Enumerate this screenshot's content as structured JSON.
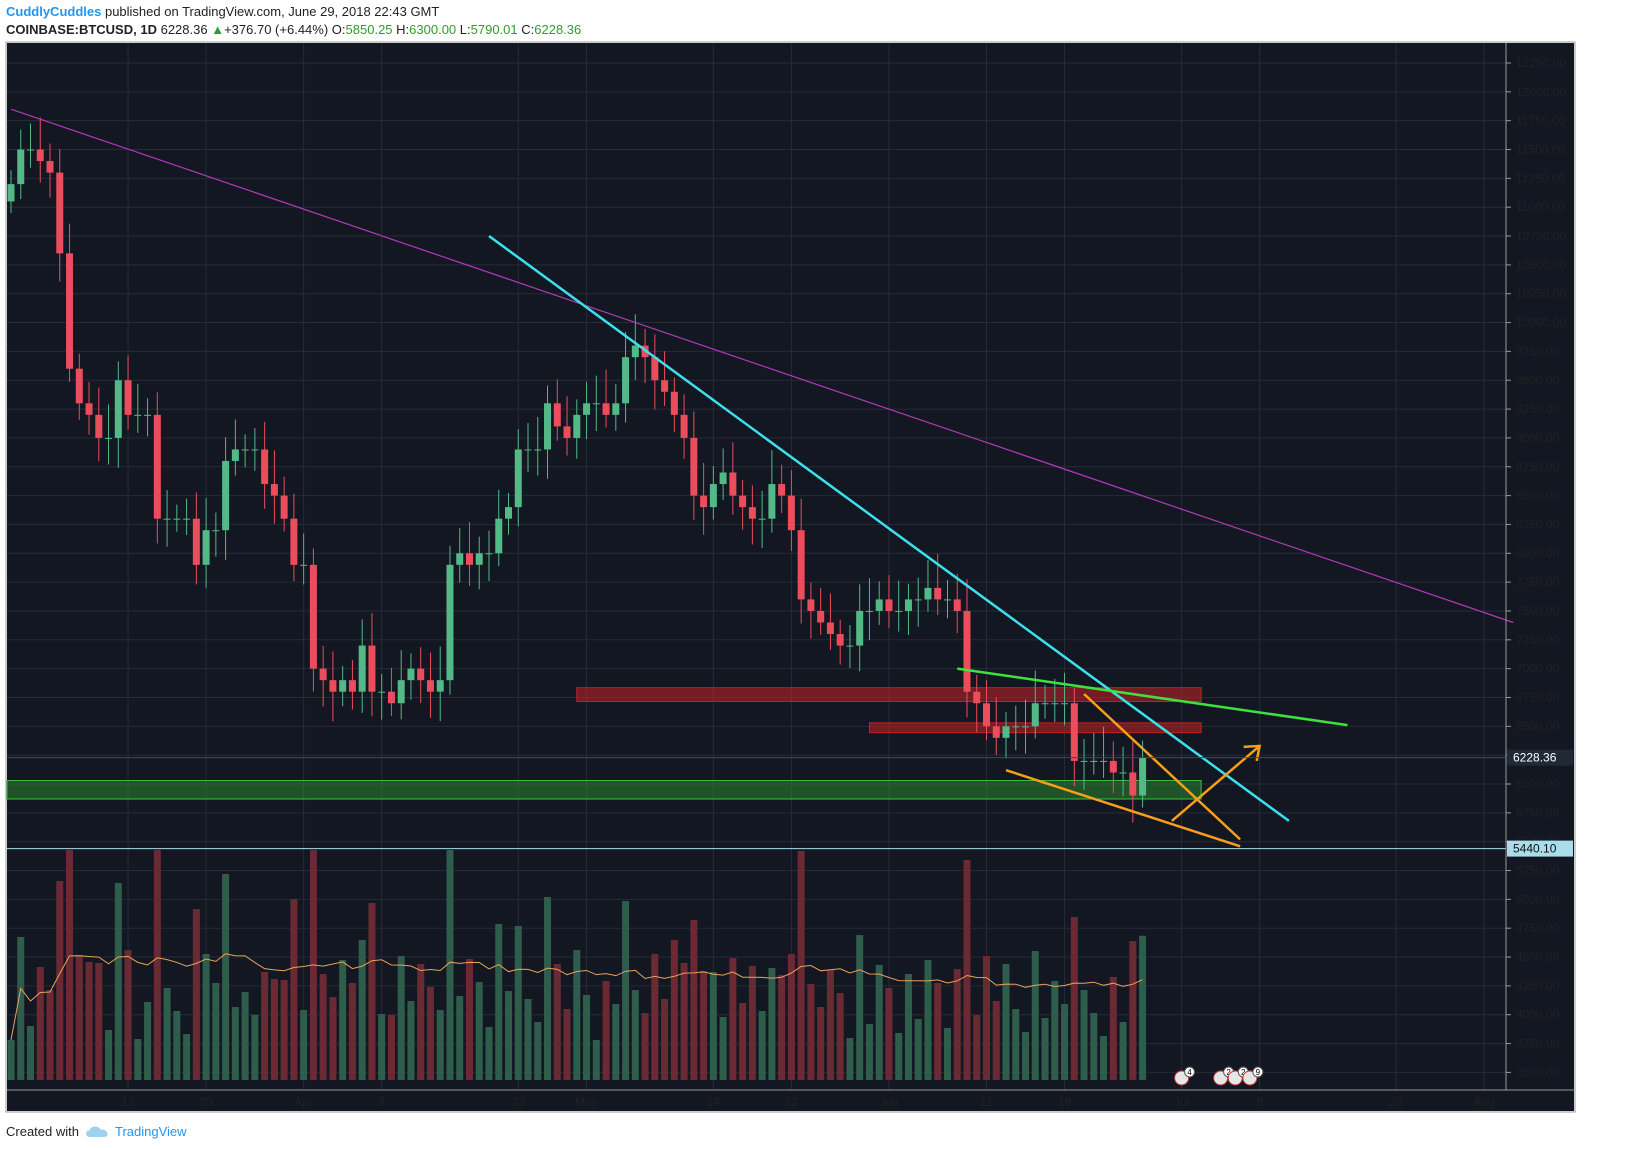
{
  "header": {
    "author": "CuddlyCuddles",
    "published_text": "published on TradingView.com, June 29, 2018 22:43 GMT",
    "symbol": "COINBASE:BTCUSD, 1D",
    "last": "6228.36",
    "change_arrow": "▲",
    "change": "+376.70 (+6.44%)",
    "o_label": "O:",
    "o_val": "5850.25",
    "h_label": "H:",
    "h_val": "6300.00",
    "l_label": "L:",
    "l_val": "5790.01",
    "c_label": "C:",
    "c_val": "6228.36"
  },
  "footer": {
    "created_with": "Created with",
    "brand": "TradingView",
    "logo_icon": "cloud-logo-icon"
  },
  "colors": {
    "background": "#131722",
    "grid": "#262b38",
    "bull": "#53b987",
    "bear": "#eb4d5c",
    "vol_bull": "#2f5d4c",
    "vol_bear": "#6b2a33",
    "axis_text": "#222222",
    "long_trendline": "#b23ab7",
    "cyan_trendline": "#3ce0ec",
    "green_line": "#3fe03f",
    "orange": "#f6a01a",
    "red_zone": "#c42025",
    "green_zone": "#2d8f2d",
    "volume_ma": "#e8a25b",
    "price_label_bg": "#1f2a36",
    "level_label_bg": "#a8dde9"
  },
  "chart_data": {
    "type": "candlestick",
    "title": "",
    "symbol": "COINBASE:BTCUSD",
    "interval": "1D",
    "y_axis_position": "right",
    "ylim": [
      3300,
      12500
    ],
    "y_ticks": [
      "12250.00",
      "12000.00",
      "11750.00",
      "11500.00",
      "11250.00",
      "11000.00",
      "10750.00",
      "10500.00",
      "10250.00",
      "10000.00",
      "9750.00",
      "9500.00",
      "9250.00",
      "9000.00",
      "8750.00",
      "8500.00",
      "8250.00",
      "8000.00",
      "7750.00",
      "7500.00",
      "7250.00",
      "7000.00",
      "6750.00",
      "6500.00",
      "6250.00",
      "6000.00",
      "5750.00",
      "5500.00",
      "5250.00",
      "5000.00",
      "4750.00",
      "4500.00",
      "4250.00",
      "4000.00",
      "3750.00",
      "3500.00"
    ],
    "x_ticks": [
      {
        "label": "12",
        "day": 12
      },
      {
        "label": "20",
        "day": 20
      },
      {
        "label": "Apr",
        "day": 30
      },
      {
        "label": "9",
        "day": 38
      },
      {
        "label": "23",
        "day": 52
      },
      {
        "label": "May",
        "day": 59
      },
      {
        "label": "14",
        "day": 72
      },
      {
        "label": "22",
        "day": 80
      },
      {
        "label": "Jun",
        "day": 90
      },
      {
        "label": "11",
        "day": 100
      },
      {
        "label": "19",
        "day": 108
      },
      {
        "label": "Jul",
        "day": 120
      },
      {
        "label": "9",
        "day": 128
      },
      {
        "label": "23",
        "day": 142
      },
      {
        "label": "Aug",
        "day": 151
      }
    ],
    "x_range_days": [
      0,
      154
    ],
    "first_day": "2018-03-01",
    "close_series": [
      11200,
      11500,
      11500,
      11400,
      11300,
      10600,
      9600,
      9300,
      9200,
      9000,
      9000,
      9500,
      9200,
      9200,
      9200,
      8300,
      8300,
      8300,
      8300,
      7900,
      8200,
      8200,
      8800,
      8900,
      8900,
      8900,
      8600,
      8500,
      8300,
      7900,
      7900,
      7000,
      6900,
      6800,
      6900,
      6800,
      7200,
      6800,
      6800,
      6700,
      6900,
      7000,
      6900,
      6800,
      6900,
      7900,
      8000,
      7900,
      8000,
      8000,
      8300,
      8400,
      8900,
      8900,
      8900,
      9300,
      9100,
      9000,
      9200,
      9300,
      9300,
      9200,
      9300,
      9700,
      9800,
      9700,
      9500,
      9400,
      9200,
      9000,
      8500,
      8400,
      8600,
      8700,
      8500,
      8400,
      8300,
      8300,
      8600,
      8500,
      8200,
      7600,
      7500,
      7400,
      7300,
      7200,
      7200,
      7500,
      7500,
      7600,
      7500,
      7500,
      7600,
      7600,
      7700,
      7600,
      7600,
      7500,
      6800,
      6700,
      6500,
      6400,
      6500,
      6500,
      6500,
      6700,
      6700,
      6700,
      6700,
      6200,
      6200,
      6200,
      6200,
      6100,
      6100,
      5900,
      6228.36
    ],
    "volume_scale_note": "volume shown as bars on bottom band, no numeric axis",
    "overlays": {
      "resistance_zones": [
        {
          "from_day": 58,
          "to_day": 122,
          "low": 6715,
          "high": 6835,
          "color": "red"
        },
        {
          "from_day": 88,
          "to_day": 122,
          "low": 6445,
          "high": 6530,
          "color": "red"
        }
      ],
      "support_zone": {
        "from_day": 0,
        "to_day": 122,
        "low": 5870,
        "high": 6030,
        "color": "green"
      },
      "trendlines": [
        {
          "name": "long-term",
          "from": [
            0,
            11850
          ],
          "to": [
            154,
            7400
          ],
          "color": "purple"
        },
        {
          "name": "descending",
          "from": [
            49,
            10750
          ],
          "to": [
            131,
            5680
          ],
          "color": "cyan"
        },
        {
          "name": "green-line",
          "from": [
            97,
            7000
          ],
          "to": [
            137,
            6510
          ],
          "color": "green"
        },
        {
          "name": "orange-lower",
          "from": [
            102,
            6120
          ],
          "to": [
            126,
            5460
          ],
          "color": "orange"
        },
        {
          "name": "orange-upper",
          "from": [
            110,
            6780
          ],
          "to": [
            126,
            5520
          ],
          "color": "orange"
        },
        {
          "name": "orange-arrow",
          "from": [
            119,
            5680
          ],
          "to": [
            128,
            6330
          ],
          "color": "orange"
        }
      ],
      "horizontal_level": {
        "price": 5440.1,
        "label": "5440.10"
      },
      "current_price_label": "6228.36"
    }
  }
}
